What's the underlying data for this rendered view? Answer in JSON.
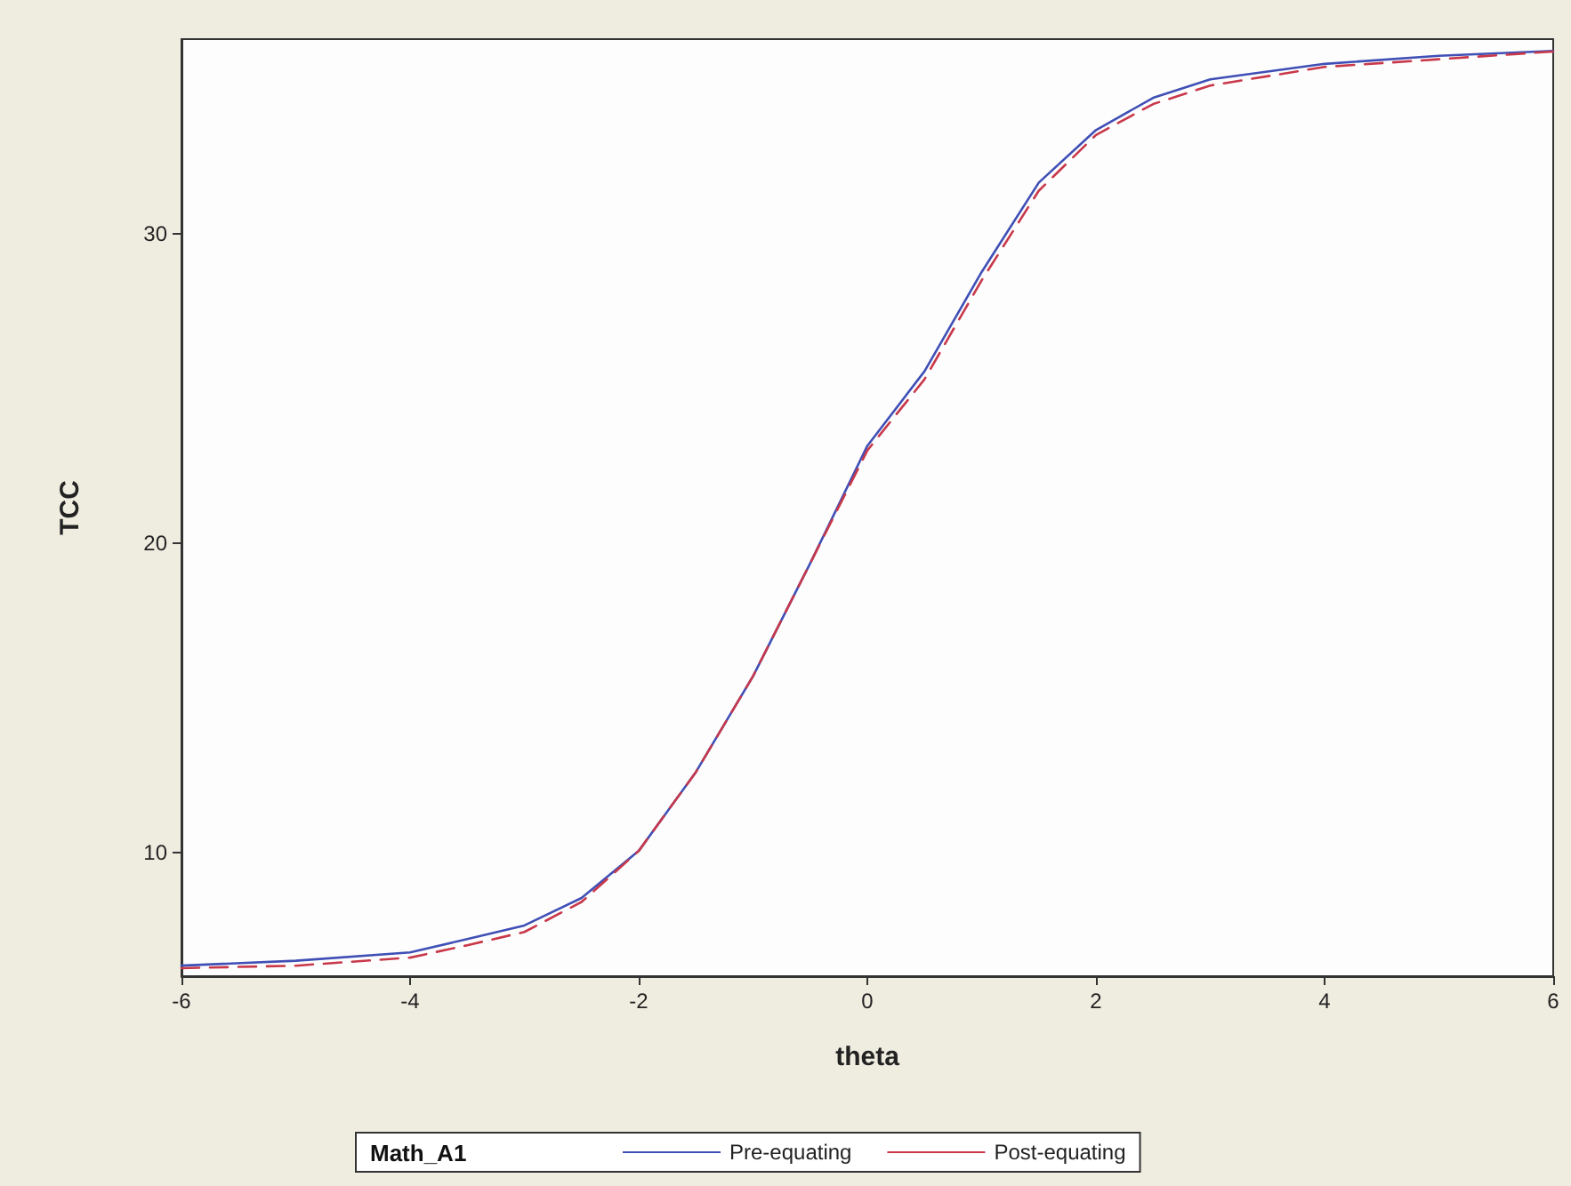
{
  "chart_data": {
    "type": "line",
    "xlabel": "theta",
    "ylabel": "TCC",
    "legend_title": "Math_A1",
    "xlim": [
      -6,
      6
    ],
    "xticks": [
      -6,
      -4,
      -2,
      0,
      2,
      4,
      6
    ],
    "ylim": [
      6,
      36.3
    ],
    "yticks": [
      10,
      20,
      30
    ],
    "grid": false,
    "legend": "bottom",
    "marker": "none",
    "series": [
      {
        "name": "Pre-equating",
        "color": "#3f4fb5",
        "line_style": "solid",
        "x": [
          -6,
          -5,
          -4,
          -3.5,
          -3,
          -2.5,
          -2,
          -1.5,
          -1,
          -0.5,
          0,
          0.5,
          1,
          1.5,
          2,
          2.5,
          3,
          4,
          5,
          6
        ],
        "values": [
          6.34,
          6.5,
          6.77,
          7.2,
          7.64,
          8.53,
          10.05,
          12.6,
          15.7,
          19.35,
          23.15,
          25.56,
          28.77,
          31.66,
          33.36,
          34.4,
          35.0,
          35.5,
          35.76,
          35.92
        ]
      },
      {
        "name": "Post-equating",
        "color": "#c8384a",
        "line_style": "dashed",
        "x": [
          -6,
          -5,
          -4,
          -3.5,
          -3,
          -2.5,
          -2,
          -1.5,
          -1,
          -0.5,
          0,
          0.5,
          1,
          1.5,
          2,
          2.5,
          3,
          4,
          5,
          6
        ],
        "values": [
          6.26,
          6.34,
          6.6,
          7.0,
          7.43,
          8.4,
          10.05,
          12.6,
          15.7,
          19.35,
          23.0,
          25.3,
          28.5,
          31.4,
          33.2,
          34.2,
          34.8,
          35.4,
          35.65,
          35.9
        ]
      }
    ]
  }
}
